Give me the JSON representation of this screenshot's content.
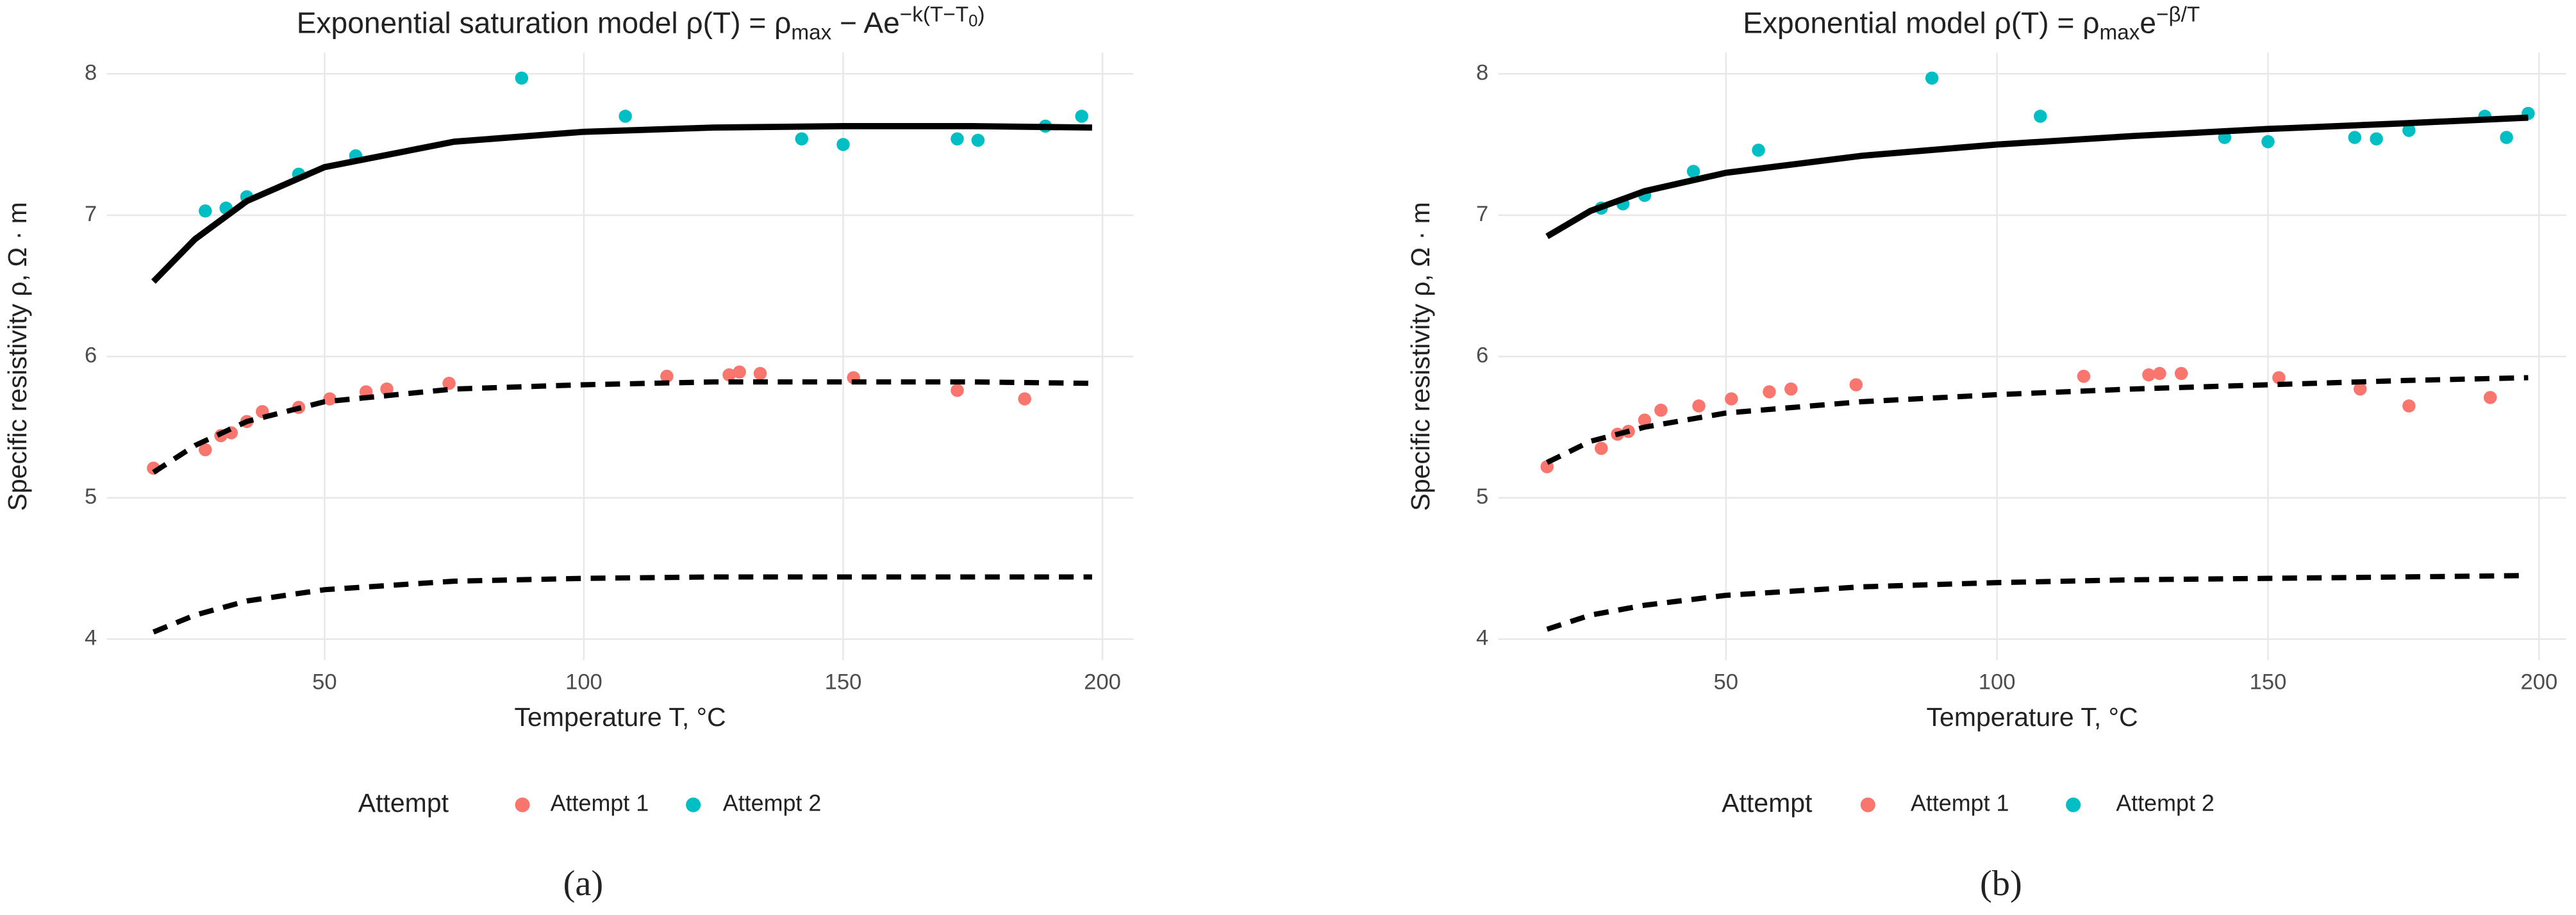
{
  "chart_data": [
    {
      "type": "scatter",
      "title": [
        "Exponential saturation model  ρ(T) = ρ",
        "max",
        " − Ae",
        "−k(T−T",
        "0",
        ")"
      ],
      "x_label": "Temperature T,  °C",
      "y_label": "Specific resistivity ρ, Ω · m",
      "xlim": [
        8,
        206
      ],
      "ylim": [
        3.85,
        8.15
      ],
      "xticks": [
        50,
        100,
        150,
        200
      ],
      "yticks": [
        4,
        5,
        6,
        7,
        8
      ],
      "grid": true,
      "legend_title": "Attempt",
      "series": [
        {
          "name": "Attempt 1",
          "color": "#F8766D",
          "x": [
            17,
            27,
            30,
            32,
            35,
            38,
            45,
            51,
            58,
            62,
            74,
            116,
            128,
            130,
            134,
            152,
            172,
            185
          ],
          "values": [
            5.21,
            5.34,
            5.44,
            5.46,
            5.54,
            5.61,
            5.64,
            5.7,
            5.75,
            5.77,
            5.81,
            5.86,
            5.87,
            5.89,
            5.88,
            5.85,
            5.76,
            5.7
          ]
        },
        {
          "name": "Attempt 2",
          "color": "#00BFC4",
          "x": [
            27,
            31,
            35,
            45,
            56,
            88,
            108,
            142,
            150,
            172,
            176,
            189,
            196
          ],
          "values": [
            7.03,
            7.05,
            7.13,
            7.29,
            7.42,
            7.97,
            7.7,
            7.54,
            7.5,
            7.54,
            7.53,
            7.63,
            7.7
          ]
        }
      ],
      "fits": [
        {
          "x": [
            17,
            25,
            35,
            50,
            75,
            100,
            125,
            150,
            175,
            198
          ],
          "values": [
            6.53,
            6.83,
            7.1,
            7.34,
            7.52,
            7.59,
            7.62,
            7.63,
            7.63,
            7.62
          ],
          "dashed": false
        },
        {
          "x": [
            17,
            25,
            35,
            50,
            75,
            100,
            125,
            150,
            175,
            198
          ],
          "values": [
            5.18,
            5.37,
            5.54,
            5.68,
            5.77,
            5.8,
            5.82,
            5.82,
            5.82,
            5.81
          ],
          "dashed": true
        },
        {
          "x": [
            17,
            25,
            35,
            50,
            75,
            100,
            125,
            150,
            175,
            198
          ],
          "values": [
            4.05,
            4.17,
            4.27,
            4.35,
            4.41,
            4.43,
            4.44,
            4.44,
            4.44,
            4.44
          ],
          "dashed": true
        }
      ],
      "panel_label": "(a)"
    },
    {
      "type": "scatter",
      "title": [
        "Exponential model  ρ(T) = ρ",
        "max",
        "e",
        "−β/T"
      ],
      "x_label": "Temperature T,  °C",
      "y_label": "Specific resistivity ρ, Ω · m",
      "xlim": [
        8,
        205
      ],
      "ylim": [
        3.85,
        8.15
      ],
      "xticks": [
        50,
        100,
        150,
        200
      ],
      "yticks": [
        4,
        5,
        6,
        7,
        8
      ],
      "grid": true,
      "legend_title": "Attempt",
      "series": [
        {
          "name": "Attempt 1",
          "color": "#F8766D",
          "x": [
            17,
            27,
            30,
            32,
            35,
            38,
            45,
            51,
            58,
            62,
            74,
            116,
            128,
            130,
            134,
            152,
            167,
            176,
            191
          ],
          "values": [
            5.22,
            5.35,
            5.45,
            5.47,
            5.55,
            5.62,
            5.65,
            5.7,
            5.75,
            5.77,
            5.8,
            5.86,
            5.87,
            5.88,
            5.88,
            5.85,
            5.77,
            5.65,
            5.71
          ]
        },
        {
          "name": "Attempt 2",
          "color": "#00BFC4",
          "x": [
            27,
            31,
            35,
            44,
            56,
            88,
            108,
            142,
            150,
            166,
            170,
            176,
            190,
            194,
            198
          ],
          "values": [
            7.05,
            7.08,
            7.14,
            7.31,
            7.46,
            7.97,
            7.7,
            7.55,
            7.52,
            7.55,
            7.54,
            7.6,
            7.7,
            7.55,
            7.72
          ]
        }
      ],
      "fits": [
        {
          "x": [
            17,
            25,
            35,
            50,
            75,
            100,
            125,
            150,
            175,
            198
          ],
          "values": [
            6.85,
            7.03,
            7.17,
            7.3,
            7.42,
            7.5,
            7.56,
            7.61,
            7.65,
            7.69
          ],
          "dashed": false
        },
        {
          "x": [
            17,
            25,
            35,
            50,
            75,
            100,
            125,
            150,
            175,
            198
          ],
          "values": [
            5.25,
            5.4,
            5.5,
            5.6,
            5.68,
            5.73,
            5.77,
            5.8,
            5.83,
            5.85
          ],
          "dashed": true
        },
        {
          "x": [
            17,
            25,
            35,
            50,
            75,
            100,
            125,
            150,
            175,
            198
          ],
          "values": [
            4.07,
            4.17,
            4.24,
            4.31,
            4.37,
            4.4,
            4.42,
            4.43,
            4.44,
            4.45
          ],
          "dashed": true
        }
      ],
      "panel_label": "(b)"
    }
  ]
}
